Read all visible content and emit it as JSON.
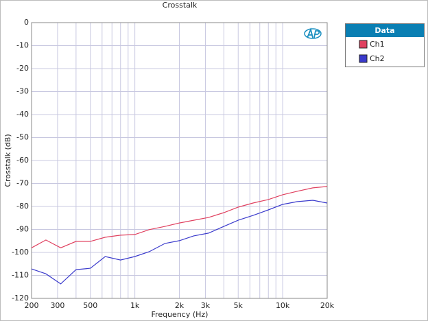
{
  "chart_data": {
    "type": "line",
    "title": "Crosstalk",
    "xlabel": "Frequency (Hz)",
    "ylabel": "Crosstalk (dB)",
    "x": [
      200,
      250,
      315,
      400,
      500,
      630,
      800,
      1000,
      1250,
      1600,
      2000,
      2500,
      3150,
      4000,
      5000,
      6300,
      8000,
      10000,
      12500,
      16000,
      20000
    ],
    "series": [
      {
        "name": "Ch1",
        "color": "#e0405f",
        "values": [
          -98,
          -94.6,
          -98,
          -95.2,
          -95.2,
          -93.4,
          -92.5,
          -92.2,
          -90.1,
          -88.7,
          -87.2,
          -86,
          -84.8,
          -82.7,
          -80.3,
          -78.5,
          -77,
          -74.9,
          -73.4,
          -71.9,
          -71.3
        ]
      },
      {
        "name": "Ch2",
        "color": "#3a3acc",
        "values": [
          -107.2,
          -109.3,
          -113.7,
          -107.5,
          -106.9,
          -101.8,
          -103.3,
          -101.8,
          -99.7,
          -96.1,
          -94.9,
          -92.8,
          -91.6,
          -88.7,
          -86,
          -83.9,
          -81.5,
          -79.1,
          -77.9,
          -77.3,
          -78.5
        ]
      }
    ],
    "xlim": [
      200,
      20000
    ],
    "xscale": "log",
    "xticks": [
      200,
      300,
      500,
      {
        "value": 1000,
        "label": "1k"
      },
      {
        "value": 2000,
        "label": "2k"
      },
      {
        "value": 3000,
        "label": "3k"
      },
      {
        "value": 5000,
        "label": "5k"
      },
      {
        "value": 10000,
        "label": "10k"
      },
      {
        "value": 20000,
        "label": "20k"
      }
    ],
    "minor_xticks": [
      400,
      600,
      700,
      800,
      900,
      4000,
      6000,
      7000,
      8000,
      9000
    ],
    "ylim": [
      -120,
      0
    ],
    "yticks": [
      -120,
      -110,
      -100,
      -90,
      -80,
      -70,
      -60,
      -50,
      -40,
      -30,
      -20,
      -10,
      0
    ],
    "grid": true,
    "legend_title": "Data",
    "legend": "outside-right"
  }
}
